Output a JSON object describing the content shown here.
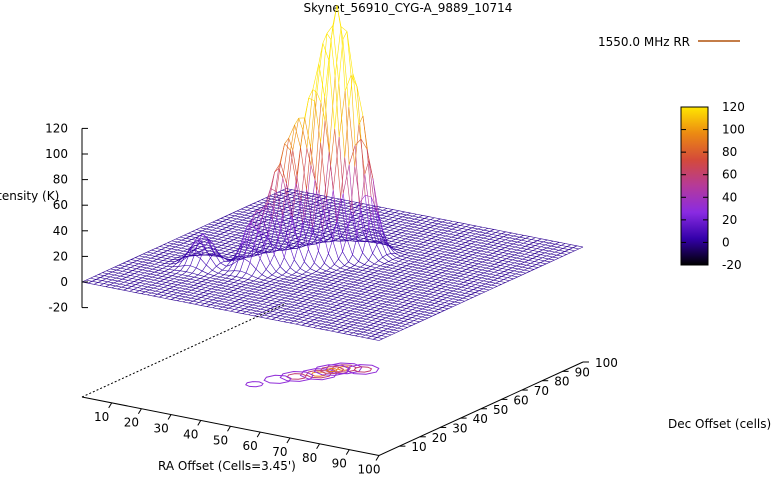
{
  "chart_data": {
    "type": "surface3d",
    "title": "Skynet_56910_CYG-A_9889_10714",
    "xlabel": "RA Offset (Cells=3.45')",
    "ylabel": "Dec Offset (cells)",
    "zlabel": "Intensity (K)",
    "legend": {
      "label": "1550.0 MHz RR",
      "placement": "top-right"
    },
    "x_ticks": [
      10,
      20,
      30,
      40,
      50,
      60,
      70,
      80,
      90,
      100
    ],
    "y_ticks": [
      10,
      20,
      30,
      40,
      50,
      60,
      70,
      80,
      90,
      100
    ],
    "z_ticks": [
      -20,
      0,
      20,
      40,
      60,
      80,
      100,
      120
    ],
    "xlim": [
      0,
      100
    ],
    "ylim": [
      0,
      100
    ],
    "zlim": [
      -20,
      120
    ],
    "colorbar": {
      "ticks": [
        -20,
        0,
        20,
        40,
        60,
        80,
        100,
        120
      ],
      "range": [
        -20,
        120
      ],
      "palette": [
        "#000000",
        "#3300aa",
        "#8a2be2",
        "#b53a9a",
        "#d44a3a",
        "#ec8a12",
        "#ffe600"
      ]
    },
    "baseline_intensity": 0,
    "peaks": [
      {
        "x": 44,
        "y": 52,
        "z": 110
      },
      {
        "x": 47,
        "y": 60,
        "z": 105
      },
      {
        "x": 40,
        "y": 47,
        "z": 85
      },
      {
        "x": 45,
        "y": 57,
        "z": 100
      },
      {
        "x": 37,
        "y": 42,
        "z": 60
      },
      {
        "x": 52,
        "y": 62,
        "z": 80
      },
      {
        "x": 34,
        "y": 35,
        "z": 40
      },
      {
        "x": 20,
        "y": 30,
        "z": 25
      }
    ],
    "contour_levels": [
      30,
      60,
      90
    ]
  }
}
